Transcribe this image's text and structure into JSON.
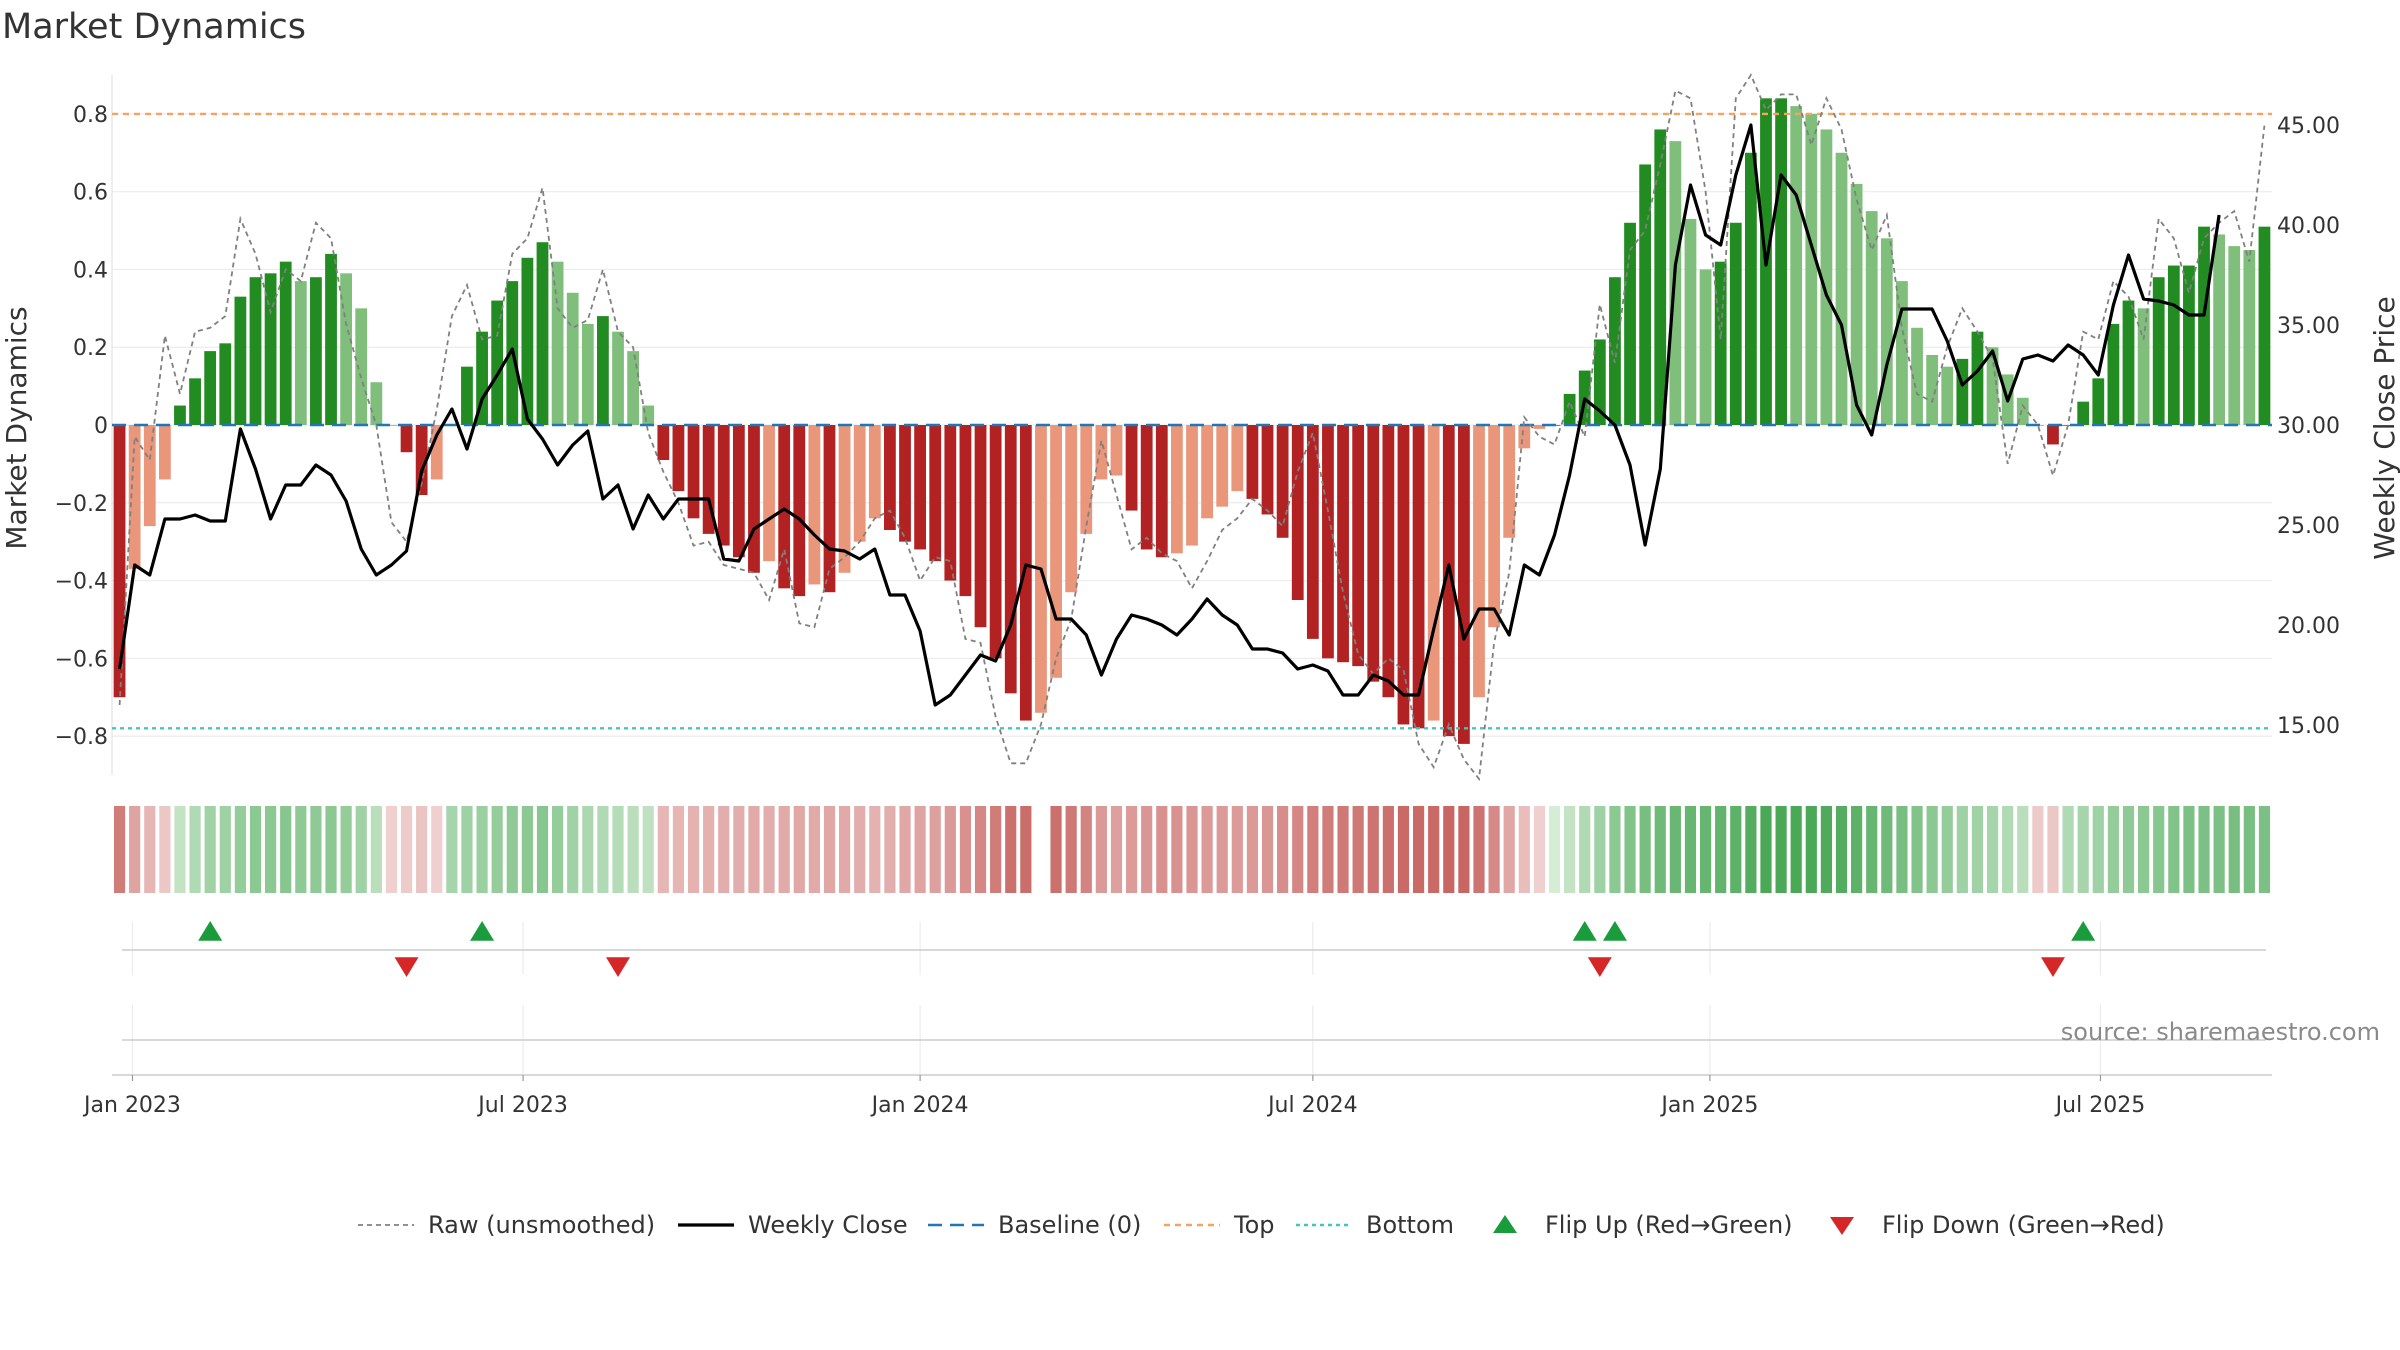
{
  "chart_data": {
    "type": "bar",
    "title": "Market Dynamics",
    "source": "source: sharemaestro.com",
    "ylabel_left": "Market Dynamics",
    "ylabel_right": "Weekly Close Price",
    "ylim_left": [
      -0.9,
      0.9
    ],
    "ylim_right": [
      12.5,
      47.5
    ],
    "left_ticks": [
      {
        "v": 0.8,
        "label": "0.8"
      },
      {
        "v": 0.6,
        "label": "0.6"
      },
      {
        "v": 0.4,
        "label": "0.4"
      },
      {
        "v": 0.2,
        "label": "0.2"
      },
      {
        "v": 0,
        "label": "0"
      },
      {
        "v": -0.2,
        "label": "−0.2"
      },
      {
        "v": -0.4,
        "label": "−0.4"
      },
      {
        "v": -0.6,
        "label": "−0.6"
      },
      {
        "v": -0.8,
        "label": "−0.8"
      }
    ],
    "right_ticks": [
      {
        "v": 45,
        "label": "45.00"
      },
      {
        "v": 40,
        "label": "40.00"
      },
      {
        "v": 35,
        "label": "35.00"
      },
      {
        "v": 30,
        "label": "30.00"
      },
      {
        "v": 25,
        "label": "25.00"
      },
      {
        "v": 20,
        "label": "20.00"
      },
      {
        "v": 15,
        "label": "15.00"
      }
    ],
    "x_ticks": [
      {
        "date": "2023-01-01",
        "label": "Jan 2023"
      },
      {
        "date": "2023-07-01",
        "label": "Jul 2023"
      },
      {
        "date": "2024-01-01",
        "label": "Jan 2024"
      },
      {
        "date": "2024-07-01",
        "label": "Jul 2024"
      },
      {
        "date": "2025-01-01",
        "label": "Jan 2025"
      },
      {
        "date": "2025-07-01",
        "label": "Jul 2025"
      }
    ],
    "start_date": "2022-12-26",
    "end_date": "2025-09-15",
    "top_line": 0.8,
    "bottom_line": -0.78,
    "baseline": 0,
    "dynamics": [
      -0.7,
      -0.37,
      -0.26,
      -0.14,
      0.05,
      0.12,
      0.19,
      0.21,
      0.33,
      0.38,
      0.39,
      0.42,
      0.37,
      0.38,
      0.44,
      0.39,
      0.3,
      0.11,
      0.0,
      -0.07,
      -0.18,
      -0.14,
      0.0,
      0.15,
      0.24,
      0.32,
      0.37,
      0.43,
      0.47,
      0.42,
      0.34,
      0.26,
      0.28,
      0.24,
      0.19,
      0.05,
      -0.09,
      -0.17,
      -0.24,
      -0.28,
      -0.31,
      -0.34,
      -0.38,
      -0.35,
      -0.42,
      -0.44,
      -0.41,
      -0.43,
      -0.38,
      -0.3,
      -0.24,
      -0.27,
      -0.3,
      -0.32,
      -0.35,
      -0.4,
      -0.44,
      -0.52,
      -0.6,
      -0.69,
      -0.76,
      -0.74,
      -0.65,
      -0.43,
      -0.28,
      -0.14,
      -0.13,
      -0.22,
      -0.32,
      -0.34,
      -0.33,
      -0.31,
      -0.24,
      -0.21,
      -0.17,
      -0.19,
      -0.23,
      -0.29,
      -0.45,
      -0.55,
      -0.6,
      -0.61,
      -0.62,
      -0.66,
      -0.7,
      -0.77,
      -0.78,
      -0.76,
      -0.8,
      -0.82,
      -0.7,
      -0.52,
      -0.29,
      -0.06,
      -0.01,
      0.0,
      0.08,
      0.14,
      0.22,
      0.38,
      0.52,
      0.67,
      0.76,
      0.73,
      0.53,
      0.4,
      0.42,
      0.52,
      0.7,
      0.84,
      0.84,
      0.82,
      0.8,
      0.76,
      0.7,
      0.62,
      0.55,
      0.48,
      0.37,
      0.25,
      0.18,
      0.15,
      0.17,
      0.24,
      0.2,
      0.13,
      0.07,
      0.0,
      -0.05,
      0.0,
      0.06,
      0.12,
      0.26,
      0.32,
      0.3,
      0.38,
      0.41,
      0.41,
      0.51,
      0.49,
      0.46,
      0.45,
      0.51
    ],
    "raw": [
      -0.72,
      -0.03,
      -0.09,
      0.23,
      0.08,
      0.24,
      0.25,
      0.28,
      0.53,
      0.44,
      0.29,
      0.4,
      0.37,
      0.52,
      0.48,
      0.26,
      0.12,
      0.0,
      -0.25,
      -0.3,
      -0.15,
      0.04,
      0.28,
      0.36,
      0.22,
      0.23,
      0.44,
      0.48,
      0.61,
      0.3,
      0.25,
      0.27,
      0.4,
      0.24,
      0.2,
      -0.02,
      -0.12,
      -0.2,
      -0.31,
      -0.3,
      -0.36,
      -0.37,
      -0.38,
      -0.45,
      -0.32,
      -0.51,
      -0.52,
      -0.37,
      -0.34,
      -0.3,
      -0.24,
      -0.22,
      -0.29,
      -0.4,
      -0.34,
      -0.35,
      -0.55,
      -0.56,
      -0.75,
      -0.87,
      -0.87,
      -0.77,
      -0.6,
      -0.5,
      -0.26,
      -0.04,
      -0.18,
      -0.32,
      -0.29,
      -0.33,
      -0.35,
      -0.42,
      -0.35,
      -0.27,
      -0.24,
      -0.19,
      -0.22,
      -0.26,
      -0.12,
      -0.02,
      -0.22,
      -0.43,
      -0.59,
      -0.64,
      -0.6,
      -0.63,
      -0.82,
      -0.88,
      -0.77,
      -0.86,
      -0.91,
      -0.56,
      -0.38,
      0.02,
      -0.03,
      -0.05,
      0.06,
      -0.03,
      0.31,
      0.16,
      0.45,
      0.5,
      0.67,
      0.86,
      0.84,
      0.6,
      0.22,
      0.84,
      0.9,
      0.81,
      0.85,
      0.85,
      0.72,
      0.84,
      0.76,
      0.58,
      0.45,
      0.54,
      0.25,
      0.08,
      0.06,
      0.2,
      0.3,
      0.24,
      0.17,
      -0.1,
      0.05,
      0.0,
      -0.13,
      0.0,
      0.24,
      0.22,
      0.37,
      0.33,
      0.22,
      0.53,
      0.48,
      0.34,
      0.48,
      0.52,
      0.55,
      0.42,
      0.77
    ],
    "close": [
      17.8,
      23.0,
      22.5,
      25.3,
      25.3,
      25.5,
      25.2,
      25.2,
      29.8,
      27.8,
      25.3,
      27.0,
      27.0,
      28.0,
      27.5,
      26.2,
      23.8,
      22.5,
      23.0,
      23.7,
      27.7,
      29.5,
      30.8,
      28.8,
      31.3,
      32.5,
      33.8,
      30.3,
      29.3,
      28.0,
      29.0,
      29.7,
      26.3,
      27.0,
      24.8,
      26.5,
      25.3,
      26.3,
      26.3,
      26.3,
      23.3,
      23.2,
      24.8,
      25.3,
      25.8,
      25.3,
      24.5,
      23.8,
      23.7,
      23.3,
      23.8,
      21.5,
      21.5,
      19.7,
      16.0,
      16.5,
      17.5,
      18.5,
      18.2,
      20.0,
      23.0,
      22.8,
      20.3,
      20.3,
      19.5,
      17.5,
      19.3,
      20.5,
      20.3,
      20.0,
      19.5,
      20.3,
      21.3,
      20.5,
      20.0,
      18.8,
      18.8,
      18.6,
      17.8,
      18.0,
      17.7,
      16.5,
      16.5,
      17.5,
      17.2,
      16.5,
      16.5,
      19.8,
      23.0,
      19.3,
      20.8,
      20.8,
      19.5,
      23.0,
      22.5,
      24.5,
      27.5,
      31.3,
      30.7,
      30.0,
      28.0,
      24.0,
      27.8,
      38.0,
      42.0,
      39.5,
      39.0,
      42.5,
      45.0,
      38.0,
      42.5,
      41.5,
      39.0,
      36.5,
      35.0,
      31.0,
      29.5,
      33.0,
      35.8,
      35.8,
      35.8,
      34.2,
      32.0,
      32.7,
      33.7,
      31.2,
      33.3,
      33.5,
      33.2,
      34.0,
      33.5,
      32.5,
      36.0,
      38.5,
      36.3,
      36.2,
      36.0,
      35.5,
      35.5,
      40.5
    ],
    "band_strength": [
      -0.7,
      -0.42,
      -0.3,
      -0.18,
      0.2,
      0.3,
      0.38,
      0.4,
      0.45,
      0.5,
      0.5,
      0.52,
      0.48,
      0.48,
      0.5,
      0.45,
      0.38,
      0.25,
      -0.12,
      -0.15,
      -0.2,
      -0.12,
      0.35,
      0.4,
      0.42,
      0.45,
      0.48,
      0.5,
      0.52,
      0.45,
      0.38,
      0.32,
      0.3,
      0.28,
      0.25,
      0.22,
      -0.3,
      -0.3,
      -0.32,
      -0.33,
      -0.35,
      -0.35,
      -0.38,
      -0.35,
      -0.38,
      -0.4,
      -0.38,
      -0.4,
      -0.38,
      -0.35,
      -0.32,
      -0.35,
      -0.4,
      -0.42,
      -0.45,
      -0.5,
      -0.55,
      -0.62,
      -0.7,
      -0.78,
      -0.8,
      null,
      -0.78,
      -0.72,
      -0.65,
      -0.5,
      -0.45,
      -0.48,
      -0.52,
      -0.55,
      -0.55,
      -0.52,
      -0.5,
      -0.5,
      -0.48,
      -0.5,
      -0.52,
      -0.58,
      -0.62,
      -0.68,
      -0.7,
      -0.72,
      -0.72,
      -0.75,
      -0.78,
      -0.82,
      -0.82,
      -0.82,
      -0.85,
      -0.85,
      -0.75,
      -0.6,
      -0.4,
      -0.25,
      -0.12,
      0.1,
      0.2,
      0.3,
      0.4,
      0.5,
      0.55,
      0.6,
      0.65,
      0.68,
      0.7,
      0.7,
      0.72,
      0.75,
      0.8,
      0.85,
      0.85,
      0.85,
      0.85,
      0.82,
      0.8,
      0.75,
      0.7,
      0.65,
      0.6,
      0.55,
      0.5,
      0.45,
      0.4,
      0.38,
      0.35,
      0.3,
      0.25,
      -0.15,
      -0.18,
      0.3,
      0.35,
      0.4,
      0.45,
      0.48,
      0.5,
      0.52,
      0.55,
      0.58,
      0.58,
      0.58,
      0.6,
      0.6,
      0.58
    ],
    "flip_up": [
      "2023-02-06",
      "2023-06-12",
      "2024-11-04",
      "2024-11-18",
      "2025-06-23"
    ],
    "flip_down": [
      "2023-05-08",
      "2023-08-14",
      "2024-11-11",
      "2025-06-09"
    ],
    "colors": {
      "strong_green": "#228b22",
      "light_green": "#7fbf7b",
      "strong_red": "#b22222",
      "light_red": "#e9967a",
      "close_line": "#000000",
      "raw_line": "#808080",
      "baseline": "#1f77b4",
      "top": "#f4a460",
      "bottom": "#40c4c4",
      "flip_up": "#1a9c3c",
      "flip_down": "#d62728"
    },
    "legend": [
      {
        "key": "raw",
        "label": "Raw (unsmoothed)"
      },
      {
        "key": "close",
        "label": "Weekly Close"
      },
      {
        "key": "baseline",
        "label": "Baseline (0)"
      },
      {
        "key": "top",
        "label": "Top"
      },
      {
        "key": "bottom",
        "label": "Bottom"
      },
      {
        "key": "flip_up",
        "label": "Flip Up (Red→Green)"
      },
      {
        "key": "flip_down",
        "label": "Flip Down (Green→Red)"
      }
    ],
    "legend_position": "bottom-center"
  }
}
